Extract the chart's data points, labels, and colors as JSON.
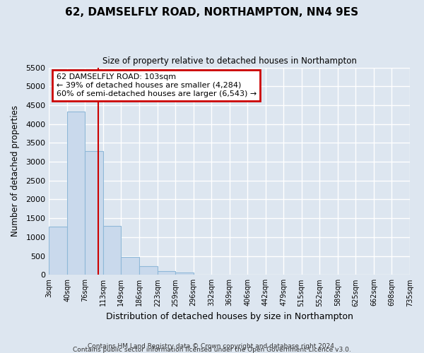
{
  "title": "62, DAMSELFLY ROAD, NORTHAMPTON, NN4 9ES",
  "subtitle": "Size of property relative to detached houses in Northampton",
  "xlabel": "Distribution of detached houses by size in Northampton",
  "ylabel": "Number of detached properties",
  "bar_color": "#c9d9ec",
  "bar_edge_color": "#8fb8d8",
  "background_color": "#dde6f0",
  "grid_color": "#ffffff",
  "bin_edges": [
    3,
    40,
    76,
    113,
    149,
    186,
    223,
    259,
    296,
    332,
    369,
    406,
    442,
    479,
    515,
    552,
    589,
    625,
    662,
    698,
    735
  ],
  "bin_labels": [
    "3sqm",
    "40sqm",
    "76sqm",
    "113sqm",
    "149sqm",
    "186sqm",
    "223sqm",
    "259sqm",
    "296sqm",
    "332sqm",
    "369sqm",
    "406sqm",
    "442sqm",
    "479sqm",
    "515sqm",
    "552sqm",
    "589sqm",
    "625sqm",
    "662sqm",
    "698sqm",
    "735sqm"
  ],
  "bar_heights": [
    1270,
    4330,
    3290,
    1290,
    480,
    230,
    95,
    60,
    0,
    0,
    0,
    0,
    0,
    0,
    0,
    0,
    0,
    0,
    0,
    0
  ],
  "red_line_x": 103,
  "ylim": [
    0,
    5500
  ],
  "yticks": [
    0,
    500,
    1000,
    1500,
    2000,
    2500,
    3000,
    3500,
    4000,
    4500,
    5000,
    5500
  ],
  "annotation_box_title": "62 DAMSELFLY ROAD: 103sqm",
  "annotation_line1": "← 39% of detached houses are smaller (4,284)",
  "annotation_line2": "60% of semi-detached houses are larger (6,543) →",
  "annotation_box_color": "#ffffff",
  "annotation_box_edge_color": "#cc0000",
  "red_line_color": "#cc0000",
  "footer_line1": "Contains HM Land Registry data © Crown copyright and database right 2024.",
  "footer_line2": "Contains public sector information licensed under the Open Government Licence v3.0."
}
